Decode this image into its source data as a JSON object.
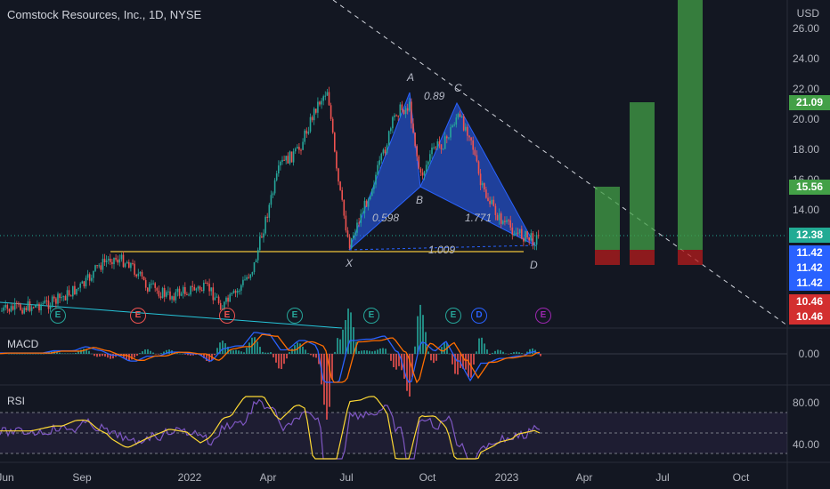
{
  "title": "Comstock Resources, Inc., 1D, NYSE",
  "currency": "USD",
  "indicators": {
    "macd": "MACD",
    "rsi": "RSI"
  },
  "y_axis_labels": [
    "26.00",
    "24.00",
    "22.00",
    "20.00",
    "18.00",
    "16.00",
    "14.00"
  ],
  "price_tags": [
    {
      "value": "21.09",
      "color": "#43a047"
    },
    {
      "value": "15.56",
      "color": "#43a047"
    },
    {
      "value": "12.38",
      "color": "#22ab94"
    },
    {
      "value": "11.42",
      "color": "#2962ff"
    },
    {
      "value": "11.42",
      "color": "#2962ff"
    },
    {
      "value": "11.42",
      "color": "#2962ff"
    },
    {
      "value": "10.46",
      "color": "#d32f2f"
    },
    {
      "value": "10.46",
      "color": "#d32f2f"
    }
  ],
  "macd_axis": [
    "0.00"
  ],
  "rsi_axis": [
    "80.00",
    "40.00"
  ],
  "x_axis_labels": [
    "Jun",
    "Sep",
    "2022",
    "Apr",
    "Jul",
    "Oct",
    "2023",
    "Apr",
    "Jul",
    "Oct"
  ],
  "pattern_labels": {
    "A": "A",
    "B": "B",
    "C": "C",
    "D": "D",
    "X": "X",
    "xb": "0.598",
    "ac": "0.89",
    "bd": "1.771",
    "xd": "1.009"
  },
  "events": [
    {
      "icon": "E",
      "kind": "earnings-icon",
      "color": "#26a69a"
    },
    {
      "icon": "E",
      "kind": "earnings-icon",
      "color": "#ef5350"
    },
    {
      "icon": "E",
      "kind": "earnings-icon",
      "color": "#ef5350"
    },
    {
      "icon": "E",
      "kind": "earnings-icon",
      "color": "#26a69a"
    },
    {
      "icon": "E",
      "kind": "earnings-icon",
      "color": "#26a69a"
    },
    {
      "icon": "E",
      "kind": "earnings-icon",
      "color": "#26a69a"
    },
    {
      "icon": "D",
      "kind": "dividend-icon",
      "color": "#2962ff"
    },
    {
      "icon": "E",
      "kind": "earnings-icon",
      "color": "#9c27b0"
    }
  ],
  "colors": {
    "up": "#26a69a",
    "down": "#ef5350",
    "pattern": "#2962ff",
    "support": "#f0c43a",
    "macd": "#2962ff",
    "signal": "#ff6d00",
    "rsi": "#7e57c2",
    "rsi_ma": "#fdd835",
    "target": "#43a047",
    "stop": "#b71c1c"
  }
}
